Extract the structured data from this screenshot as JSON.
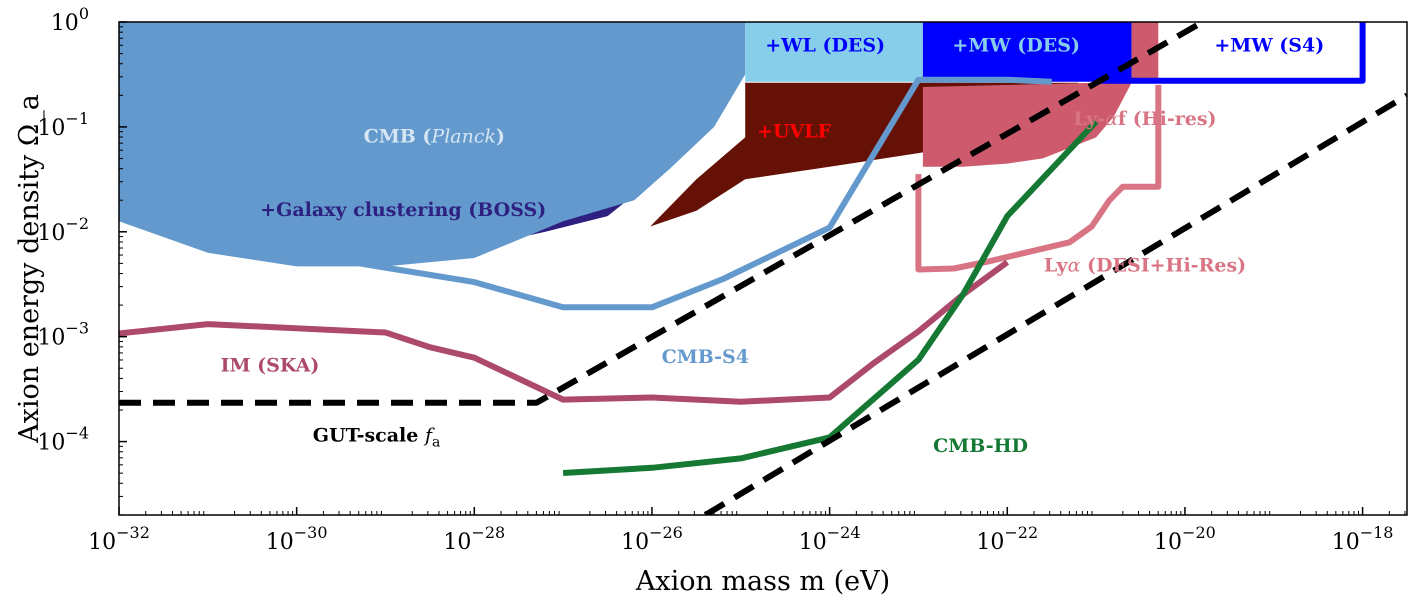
{
  "chart_data": {
    "type": "line",
    "xlabel": "Axion mass m (eV)",
    "ylabel": "Axion energy density Ω_a",
    "x_scale": "log",
    "y_scale": "log",
    "xlim_log10": [
      -32,
      -17.5
    ],
    "ylim_log10": [
      -4.7,
      0
    ],
    "x_ticks": [
      {
        "exp": -32,
        "base": "10",
        "sup": "−32"
      },
      {
        "exp": -30,
        "base": "10",
        "sup": "−30"
      },
      {
        "exp": -28,
        "base": "10",
        "sup": "−28"
      },
      {
        "exp": -26,
        "base": "10",
        "sup": "−26"
      },
      {
        "exp": -24,
        "base": "10",
        "sup": "−24"
      },
      {
        "exp": -22,
        "base": "10",
        "sup": "−22"
      },
      {
        "exp": -20,
        "base": "10",
        "sup": "−20"
      },
      {
        "exp": -18,
        "base": "10",
        "sup": "−18"
      }
    ],
    "y_ticks": [
      {
        "exp": 0,
        "base": "10",
        "sup": "0"
      },
      {
        "exp": -1,
        "base": "10",
        "sup": "−1"
      },
      {
        "exp": -2,
        "base": "10",
        "sup": "−2"
      },
      {
        "exp": -3,
        "base": "10",
        "sup": "−3"
      },
      {
        "exp": -4,
        "base": "10",
        "sup": "−4"
      }
    ],
    "regions": [
      {
        "name": "Galaxy clustering (BOSS)",
        "color": "#2e2080",
        "points": [
          [
            -32,
            -1.75
          ],
          [
            -31,
            -2.0
          ],
          [
            -30,
            -2.15
          ],
          [
            -29.2,
            -2.2
          ],
          [
            -28.5,
            -2.25
          ],
          [
            -28,
            -2.15
          ],
          [
            -27.2,
            -2.0
          ],
          [
            -26.5,
            -1.85
          ],
          [
            -25.98,
            -1.5
          ],
          [
            -25.96,
            0
          ],
          [
            -32,
            0
          ]
        ]
      },
      {
        "name": "CMB (Planck)",
        "color": "#6399cd",
        "points": [
          [
            -32,
            -1.9
          ],
          [
            -31,
            -2.2
          ],
          [
            -30,
            -2.33
          ],
          [
            -29,
            -2.33
          ],
          [
            -28,
            -2.25
          ],
          [
            -27,
            -1.9
          ],
          [
            -26.2,
            -1.7
          ],
          [
            -25.8,
            -1.4
          ],
          [
            -25.3,
            -1.0
          ],
          [
            -24.95,
            -0.5
          ],
          [
            -24.95,
            0
          ],
          [
            -32,
            0
          ]
        ]
      },
      {
        "name": "UVLF",
        "color": "#651106",
        "points": [
          [
            -26.02,
            -1.95
          ],
          [
            -25.5,
            -1.8
          ],
          [
            -24.95,
            -1.5
          ],
          [
            -24,
            -1.38
          ],
          [
            -23,
            -1.25
          ],
          [
            -22,
            -1.1
          ],
          [
            -21.3,
            -0.95
          ],
          [
            -21.2,
            -0.58
          ],
          [
            -22,
            -0.58
          ],
          [
            -23,
            -0.58
          ],
          [
            -24,
            -0.58
          ],
          [
            -24.95,
            -0.58
          ],
          [
            -24.95,
            -1.1
          ],
          [
            -25.5,
            -1.5
          ]
        ]
      },
      {
        "name": "WL (DES)",
        "color": "#87ceeb",
        "points": [
          [
            -24.95,
            -0.57
          ],
          [
            -22.95,
            -0.57
          ],
          [
            -22.95,
            0
          ],
          [
            -24.95,
            0
          ]
        ]
      },
      {
        "name": "MW (DES)",
        "color": "#0000ff",
        "points": [
          [
            -22.95,
            -0.57
          ],
          [
            -20.6,
            -0.57
          ],
          [
            -20.6,
            0
          ],
          [
            -22.95,
            0
          ]
        ]
      },
      {
        "name": "Ly-alpha-f (Hi-res)",
        "color": "#cd5b6d",
        "points": [
          [
            -22.95,
            -1.38
          ],
          [
            -22.5,
            -1.38
          ],
          [
            -22,
            -1.35
          ],
          [
            -21.6,
            -1.3
          ],
          [
            -21.3,
            -1.2
          ],
          [
            -21,
            -1.1
          ],
          [
            -20.8,
            -0.9
          ],
          [
            -20.6,
            -0.58
          ],
          [
            -20.6,
            0
          ],
          [
            -20.3,
            0
          ],
          [
            -20.3,
            -0.58
          ],
          [
            -21,
            -0.58
          ],
          [
            -22.95,
            -0.62
          ]
        ]
      }
    ],
    "series": [
      {
        "name": "CMB-S4",
        "color": "#6399cd",
        "width": 6,
        "dash": "",
        "points": [
          [
            -29.3,
            -2.3
          ],
          [
            -28,
            -2.48
          ],
          [
            -27,
            -2.72
          ],
          [
            -26,
            -2.72
          ],
          [
            -25.2,
            -2.45
          ],
          [
            -24,
            -1.96
          ],
          [
            -23,
            -0.55
          ],
          [
            -22.95,
            -0.55
          ],
          [
            -22,
            -0.55
          ],
          [
            -21.5,
            -0.57
          ]
        ]
      },
      {
        "name": "MW (S4)",
        "color": "#0000ff",
        "width": 6,
        "dash": "",
        "points": [
          [
            -21,
            -0.56
          ],
          [
            -18,
            -0.56
          ],
          [
            -18,
            0.03
          ]
        ]
      },
      {
        "name": "Ly-alpha (DESI+Hi-Res)",
        "color": "#d87483",
        "width": 6,
        "dash": "",
        "points": [
          [
            -20.3,
            -0.6
          ],
          [
            -20.3,
            -1.57
          ],
          [
            -20.7,
            -1.57
          ],
          [
            -20.85,
            -1.7
          ],
          [
            -21.05,
            -1.95
          ],
          [
            -21.3,
            -2.1
          ],
          [
            -21.8,
            -2.2
          ],
          [
            -22.2,
            -2.28
          ],
          [
            -22.6,
            -2.35
          ],
          [
            -23.0,
            -2.36
          ],
          [
            -23.0,
            -1.45
          ]
        ]
      },
      {
        "name": "IM (SKA)",
        "color": "#ad4a6c",
        "width": 6,
        "dash": "",
        "points": [
          [
            -32,
            -2.97
          ],
          [
            -31,
            -2.88
          ],
          [
            -29,
            -2.96
          ],
          [
            -28.5,
            -3.1
          ],
          [
            -28,
            -3.2
          ],
          [
            -27,
            -3.6
          ],
          [
            -26,
            -3.58
          ],
          [
            -25,
            -3.62
          ],
          [
            -24,
            -3.58
          ],
          [
            -23.5,
            -3.25
          ],
          [
            -23,
            -2.95
          ],
          [
            -22.5,
            -2.6
          ],
          [
            -22,
            -2.29
          ]
        ]
      },
      {
        "name": "CMB-HD",
        "color": "#157934",
        "width": 6,
        "dash": "",
        "points": [
          [
            -27,
            -4.3
          ],
          [
            -26,
            -4.25
          ],
          [
            -25,
            -4.16
          ],
          [
            -24,
            -3.96
          ],
          [
            -23,
            -3.22
          ],
          [
            -22.5,
            -2.6
          ],
          [
            -22,
            -1.85
          ],
          [
            -21,
            -0.95
          ]
        ]
      },
      {
        "name": "GUT-scale upper",
        "color": "#000000",
        "width": 6,
        "dash": "22 12",
        "points": [
          [
            -32,
            -3.63
          ],
          [
            -27.3,
            -3.63
          ],
          [
            -19.8,
            0
          ]
        ]
      },
      {
        "name": "GUT-scale lower",
        "color": "#000000",
        "width": 6,
        "dash": "22 12",
        "points": [
          [
            -25.4,
            -4.7
          ],
          [
            -17.5,
            -0.7
          ]
        ]
      }
    ],
    "labels": [
      {
        "key": "cmb",
        "segments": [
          {
            "t": "CMB (",
            "i": false
          },
          {
            "t": "Planck",
            "i": true
          },
          {
            "t": ")",
            "i": false
          }
        ],
        "at": [
          -28.45,
          -1.15
        ],
        "color": "#d6e6f4"
      },
      {
        "key": "boss",
        "segments": [
          {
            "t": "+Galaxy clustering (BOSS)",
            "i": false
          }
        ],
        "at": [
          -28.8,
          -1.85
        ],
        "color": "#2e2080"
      },
      {
        "key": "uvlf",
        "segments": [
          {
            "t": "+UVLF",
            "i": false
          }
        ],
        "at": [
          -24.4,
          -1.1
        ],
        "color": "#ff0000"
      },
      {
        "key": "wl",
        "segments": [
          {
            "t": "+WL (DES)",
            "i": false
          }
        ],
        "at": [
          -24.05,
          -0.28
        ],
        "color": "#0000ff"
      },
      {
        "key": "mwdes",
        "segments": [
          {
            "t": "+MW (DES)",
            "i": false
          }
        ],
        "at": [
          -21.9,
          -0.28
        ],
        "color": "#87ceeb"
      },
      {
        "key": "mws4",
        "segments": [
          {
            "t": "+MW (S4)",
            "i": false
          }
        ],
        "at": [
          -19.05,
          -0.28
        ],
        "color": "#0000ff"
      },
      {
        "key": "lyaf",
        "segments": [
          {
            "t": "Ly-",
            "i": false
          },
          {
            "t": "α",
            "i": true
          },
          {
            "t": "f (Hi-res)",
            "i": false
          }
        ],
        "at": [
          -20.45,
          -0.98
        ],
        "color": "#d87483"
      },
      {
        "key": "lya",
        "segments": [
          {
            "t": "Ly",
            "i": false
          },
          {
            "t": "α",
            "i": true
          },
          {
            "t": " (DESI+Hi-Res)",
            "i": false
          }
        ],
        "at": [
          -20.45,
          -2.38
        ],
        "color": "#d87483"
      },
      {
        "key": "cmbs4",
        "segments": [
          {
            "t": "CMB-S4",
            "i": false
          }
        ],
        "at": [
          -25.4,
          -3.25
        ],
        "color": "#6399cd"
      },
      {
        "key": "ska",
        "segments": [
          {
            "t": "IM (SKA)",
            "i": false
          }
        ],
        "at": [
          -30.3,
          -3.33
        ],
        "color": "#ad4a6c"
      },
      {
        "key": "cmbhd",
        "segments": [
          {
            "t": "CMB-HD",
            "i": false
          }
        ],
        "at": [
          -22.3,
          -4.1
        ],
        "color": "#157934"
      },
      {
        "key": "gut",
        "segments": [
          {
            "t": "GUT-scale ",
            "i": false
          },
          {
            "t": "f",
            "i": true
          },
          {
            "t": "a",
            "i": false,
            "sub": true
          }
        ],
        "at": [
          -29.1,
          -4.0
        ],
        "color": "#000000"
      }
    ]
  }
}
